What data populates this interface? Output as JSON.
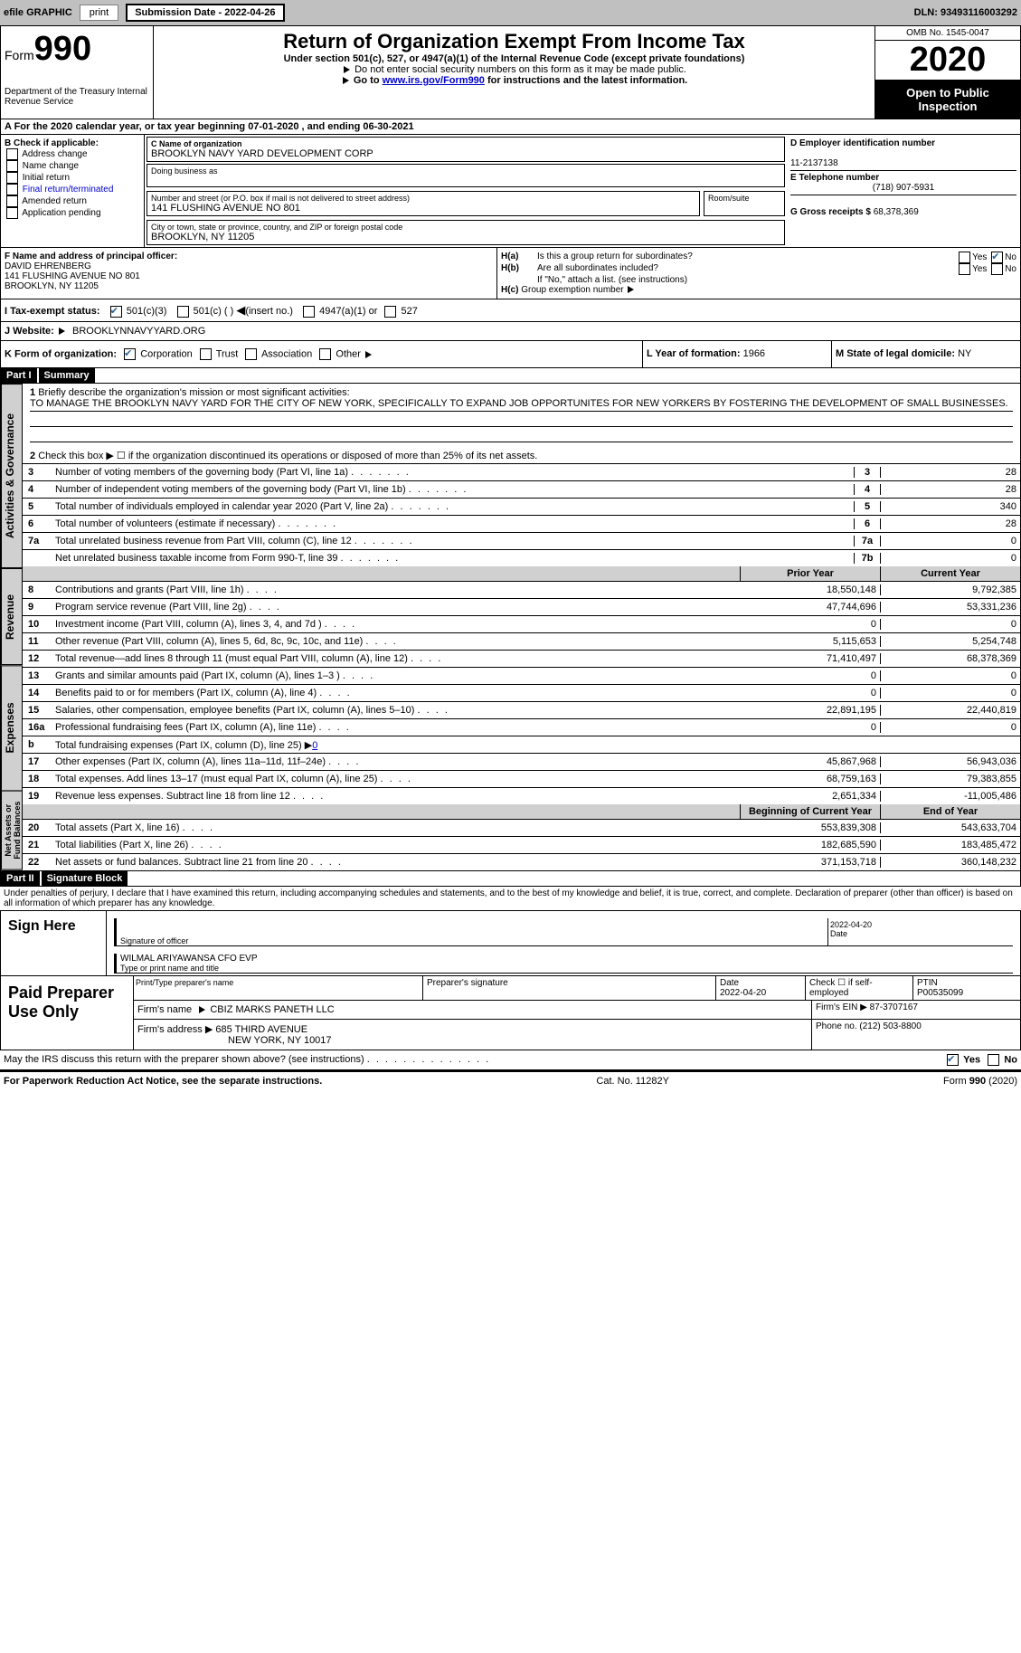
{
  "top": {
    "efile": "efile GRAPHIC",
    "print": "print",
    "submission": "Submission Date - 2022-04-26",
    "dln": "DLN: 93493116003292"
  },
  "header": {
    "form_word": "Form",
    "form_num": "990",
    "dept": "Department of the Treasury\nInternal Revenue Service",
    "title": "Return of Organization Exempt From Income Tax",
    "subtitle": "Under section 501(c), 527, or 4947(a)(1) of the Internal Revenue Code (except private foundations)",
    "note1": "Do not enter social security numbers on this form as it may be made public.",
    "note2_pre": "Go to ",
    "note2_link": "www.irs.gov/Form990",
    "note2_post": " for instructions and the latest information.",
    "omb": "OMB No. 1545-0047",
    "year": "2020",
    "open_public": "Open to Public Inspection"
  },
  "period": "A For the 2020 calendar year, or tax year beginning 07-01-2020  , and ending 06-30-2021",
  "boxB": {
    "label": "B Check if applicable:",
    "opts": [
      "Address change",
      "Name change",
      "Initial return",
      "Final return/terminated",
      "Amended return",
      "Application pending"
    ]
  },
  "boxC": {
    "label": "C Name of organization",
    "name": "BROOKLYN NAVY YARD DEVELOPMENT CORP",
    "dba_label": "Doing business as",
    "addr_label": "Number and street (or P.O. box if mail is not delivered to street address)",
    "addr": "141 FLUSHING AVENUE NO 801",
    "room": "Room/suite",
    "city_label": "City or town, state or province, country, and ZIP or foreign postal code",
    "city": "BROOKLYN, NY  11205"
  },
  "boxD": {
    "label": "D Employer identification number",
    "ein": "11-2137138"
  },
  "boxE": {
    "label": "E Telephone number",
    "phone": "(718) 907-5931"
  },
  "boxG": {
    "label": "G Gross receipts $",
    "val": "68,378,369"
  },
  "boxF": {
    "label": "F Name and address of principal officer:",
    "name": "DAVID EHRENBERG",
    "addr1": "141 FLUSHING AVENUE NO 801",
    "addr2": "BROOKLYN, NY  11205"
  },
  "boxH": {
    "a": "Is this a group return for subordinates?",
    "b": "Are all subordinates included?",
    "b_note": "If \"No,\" attach a list. (see instructions)",
    "c": "Group exemption number",
    "yes": "Yes",
    "no": "No"
  },
  "boxI": {
    "label": "I    Tax-exempt status:",
    "o1": "501(c)(3)",
    "o2": "501(c) ( )",
    "o2_note": "(insert no.)",
    "o3": "4947(a)(1) or",
    "o4": "527"
  },
  "boxJ": {
    "label": "J    Website:",
    "val": "BROOKLYNNAVYYARD.ORG"
  },
  "boxK": {
    "label": "K Form of organization:",
    "o1": "Corporation",
    "o2": "Trust",
    "o3": "Association",
    "o4": "Other"
  },
  "boxL": {
    "label": "L Year of formation:",
    "val": "1966"
  },
  "boxM": {
    "label": "M State of legal domicile:",
    "val": "NY"
  },
  "part1": {
    "header": "Part I",
    "title": "Summary",
    "vert1": "Activities & Governance",
    "vert2": "Revenue",
    "vert3": "Expenses",
    "vert4": "Net Assets or Fund Balances",
    "q1_label": "1",
    "q1": "Briefly describe the organization's mission or most significant activities:",
    "q1_text": "TO MANAGE THE BROOKLYN NAVY YARD FOR THE CITY OF NEW YORK, SPECIFICALLY TO EXPAND JOB OPPORTUNITES FOR NEW YORKERS BY FOSTERING THE DEVELOPMENT OF SMALL BUSINESSES.",
    "q2_label": "2",
    "q2": "Check this box ▶ ☐ if the organization discontinued its operations or disposed of more than 25% of its net assets.",
    "hdr_prior": "Prior Year",
    "hdr_current": "Current Year",
    "hdr_boy": "Beginning of Current Year",
    "hdr_eoy": "End of Year",
    "rows_single": [
      {
        "n": "3",
        "d": "Number of voting members of the governing body (Part VI, line 1a)",
        "box": "3",
        "v": "28"
      },
      {
        "n": "4",
        "d": "Number of independent voting members of the governing body (Part VI, line 1b)",
        "box": "4",
        "v": "28"
      },
      {
        "n": "5",
        "d": "Total number of individuals employed in calendar year 2020 (Part V, line 2a)",
        "box": "5",
        "v": "340"
      },
      {
        "n": "6",
        "d": "Total number of volunteers (estimate if necessary)",
        "box": "6",
        "v": "28"
      },
      {
        "n": "7a",
        "d": "Total unrelated business revenue from Part VIII, column (C), line 12",
        "box": "7a",
        "v": "0"
      },
      {
        "n": "",
        "d": "Net unrelated business taxable income from Form 990-T, line 39",
        "box": "7b",
        "v": "0"
      }
    ],
    "rows_rev": [
      {
        "n": "8",
        "d": "Contributions and grants (Part VIII, line 1h)",
        "v1": "18,550,148",
        "v2": "9,792,385"
      },
      {
        "n": "9",
        "d": "Program service revenue (Part VIII, line 2g)",
        "v1": "47,744,696",
        "v2": "53,331,236"
      },
      {
        "n": "10",
        "d": "Investment income (Part VIII, column (A), lines 3, 4, and 7d )",
        "v1": "0",
        "v2": "0"
      },
      {
        "n": "11",
        "d": "Other revenue (Part VIII, column (A), lines 5, 6d, 8c, 9c, 10c, and 11e)",
        "v1": "5,115,653",
        "v2": "5,254,748"
      },
      {
        "n": "12",
        "d": "Total revenue—add lines 8 through 11 (must equal Part VIII, column (A), line 12)",
        "v1": "71,410,497",
        "v2": "68,378,369"
      }
    ],
    "rows_exp": [
      {
        "n": "13",
        "d": "Grants and similar amounts paid (Part IX, column (A), lines 1–3 )",
        "v1": "0",
        "v2": "0"
      },
      {
        "n": "14",
        "d": "Benefits paid to or for members (Part IX, column (A), line 4)",
        "v1": "0",
        "v2": "0"
      },
      {
        "n": "15",
        "d": "Salaries, other compensation, employee benefits (Part IX, column (A), lines 5–10)",
        "v1": "22,891,195",
        "v2": "22,440,819"
      },
      {
        "n": "16a",
        "d": "Professional fundraising fees (Part IX, column (A), line 11e)",
        "v1": "0",
        "v2": "0"
      }
    ],
    "row16b": {
      "n": "b",
      "d": "Total fundraising expenses (Part IX, column (D), line 25) ▶",
      "link": "0"
    },
    "rows_exp2": [
      {
        "n": "17",
        "d": "Other expenses (Part IX, column (A), lines 11a–11d, 11f–24e)",
        "v1": "45,867,968",
        "v2": "56,943,036"
      },
      {
        "n": "18",
        "d": "Total expenses. Add lines 13–17 (must equal Part IX, column (A), line 25)",
        "v1": "68,759,163",
        "v2": "79,383,855"
      },
      {
        "n": "19",
        "d": "Revenue less expenses. Subtract line 18 from line 12",
        "v1": "2,651,334",
        "v2": "-11,005,486"
      }
    ],
    "rows_net": [
      {
        "n": "20",
        "d": "Total assets (Part X, line 16)",
        "v1": "553,839,308",
        "v2": "543,633,704"
      },
      {
        "n": "21",
        "d": "Total liabilities (Part X, line 26)",
        "v1": "182,685,590",
        "v2": "183,485,472"
      },
      {
        "n": "22",
        "d": "Net assets or fund balances. Subtract line 21 from line 20",
        "v1": "371,153,718",
        "v2": "360,148,232"
      }
    ]
  },
  "part2": {
    "header": "Part II",
    "title": "Signature Block",
    "decl": "Under penalties of perjury, I declare that I have examined this return, including accompanying schedules and statements, and to the best of my knowledge and belief, it is true, correct, and complete. Declaration of preparer (other than officer) is based on all information of which preparer has any knowledge."
  },
  "sign": {
    "here": "Sign Here",
    "sig_label": "Signature of officer",
    "date_label": "Date",
    "date": "2022-04-20",
    "name": "WILMAL ARIYAWANSA  CFO EVP",
    "name_label": "Type or print name and title"
  },
  "paid": {
    "label": "Paid Preparer Use Only",
    "h1": "Print/Type preparer's name",
    "h2": "Preparer's signature",
    "h3": "Date",
    "h3v": "2022-04-20",
    "h4": "Check ☐ if self-employed",
    "h5": "PTIN",
    "h5v": "P00535099",
    "firm_label": "Firm's name",
    "firm": "CBIZ MARKS PANETH LLC",
    "ein_label": "Firm's EIN ▶",
    "ein": "87-3707167",
    "addr_label": "Firm's address ▶",
    "addr1": "685 THIRD AVENUE",
    "addr2": "NEW YORK, NY  10017",
    "phone_label": "Phone no.",
    "phone": "(212) 503-8800"
  },
  "discuss": {
    "q": "May the IRS discuss this return with the preparer shown above? (see instructions)",
    "yes": "Yes",
    "no": "No"
  },
  "footer": {
    "left": "For Paperwork Reduction Act Notice, see the separate instructions.",
    "mid": "Cat. No. 11282Y",
    "right": "Form 990 (2020)"
  },
  "colors": {
    "topbar_bg": "#c0c0c0",
    "black": "#000000",
    "link": "#0000cc",
    "check": "#3a87ad",
    "gray": "#d0d0d0",
    "gray2": "#b8b8b8"
  }
}
